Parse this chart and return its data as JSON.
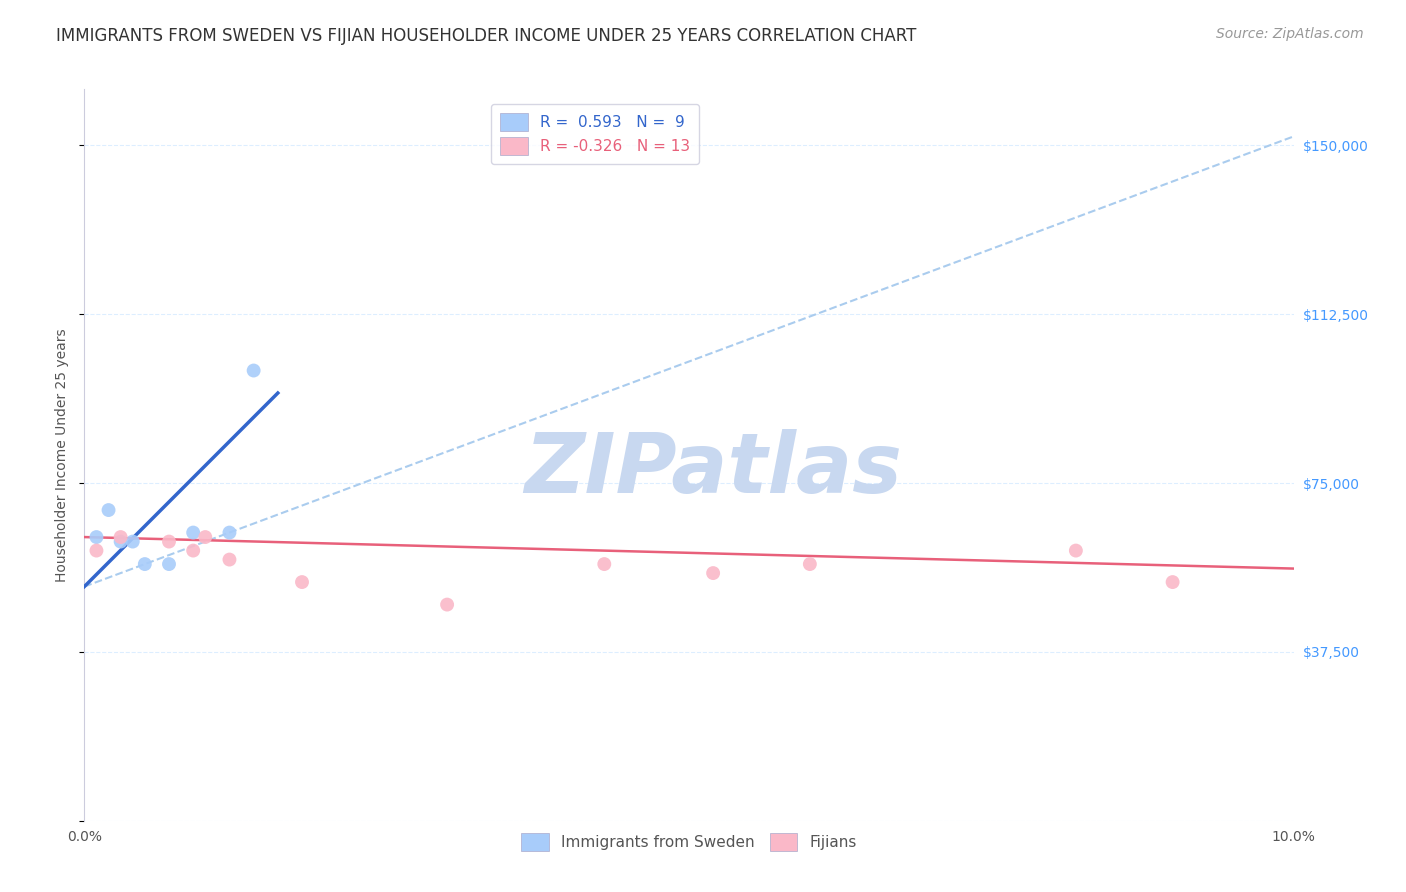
{
  "title": "IMMIGRANTS FROM SWEDEN VS FIJIAN HOUSEHOLDER INCOME UNDER 25 YEARS CORRELATION CHART",
  "source": "Source: ZipAtlas.com",
  "ylabel": "Householder Income Under 25 years",
  "yticks": [
    0,
    37500,
    75000,
    112500,
    150000
  ],
  "ytick_labels": [
    "",
    "$37,500",
    "$75,000",
    "$112,500",
    "$150,000"
  ],
  "xlim": [
    0.0,
    0.1
  ],
  "ylim": [
    0,
    162500
  ],
  "legend_entry1": "R =  0.593   N =  9",
  "legend_entry2": "R = -0.326   N = 13",
  "legend_label1": "Immigrants from Sweden",
  "legend_label2": "Fijians",
  "sweden_color": "#A8CCFA",
  "fijian_color": "#FAB8C8",
  "sweden_line_color": "#3366CC",
  "fijian_line_color": "#E8607A",
  "dashed_line_color": "#AACCEE",
  "background_color": "#FFFFFF",
  "grid_color": "#DDEEFF",
  "watermark_color": "#C8D8F0",
  "title_color": "#333333",
  "sweden_x": [
    0.001,
    0.002,
    0.003,
    0.004,
    0.005,
    0.007,
    0.009,
    0.012,
    0.014
  ],
  "sweden_y": [
    63000,
    69000,
    62000,
    62000,
    57000,
    57000,
    64000,
    64000,
    100000
  ],
  "fijian_x": [
    0.001,
    0.003,
    0.007,
    0.009,
    0.01,
    0.012,
    0.018,
    0.03,
    0.043,
    0.052,
    0.06,
    0.082,
    0.09
  ],
  "fijian_y": [
    60000,
    63000,
    62000,
    60000,
    63000,
    58000,
    53000,
    48000,
    57000,
    55000,
    57000,
    60000,
    53000
  ],
  "sweden_trendline_x": [
    0.0,
    0.016
  ],
  "sweden_trendline_y": [
    52000,
    95000
  ],
  "fijian_trendline_x": [
    0.0,
    0.1
  ],
  "fijian_trendline_y": [
    63000,
    56000
  ],
  "dashed_trendline_x": [
    0.0,
    0.1
  ],
  "dashed_trendline_y": [
    52000,
    152000
  ],
  "marker_size": 100,
  "title_fontsize": 12,
  "axis_label_fontsize": 10,
  "tick_fontsize": 10,
  "legend_fontsize": 11,
  "source_fontsize": 10
}
